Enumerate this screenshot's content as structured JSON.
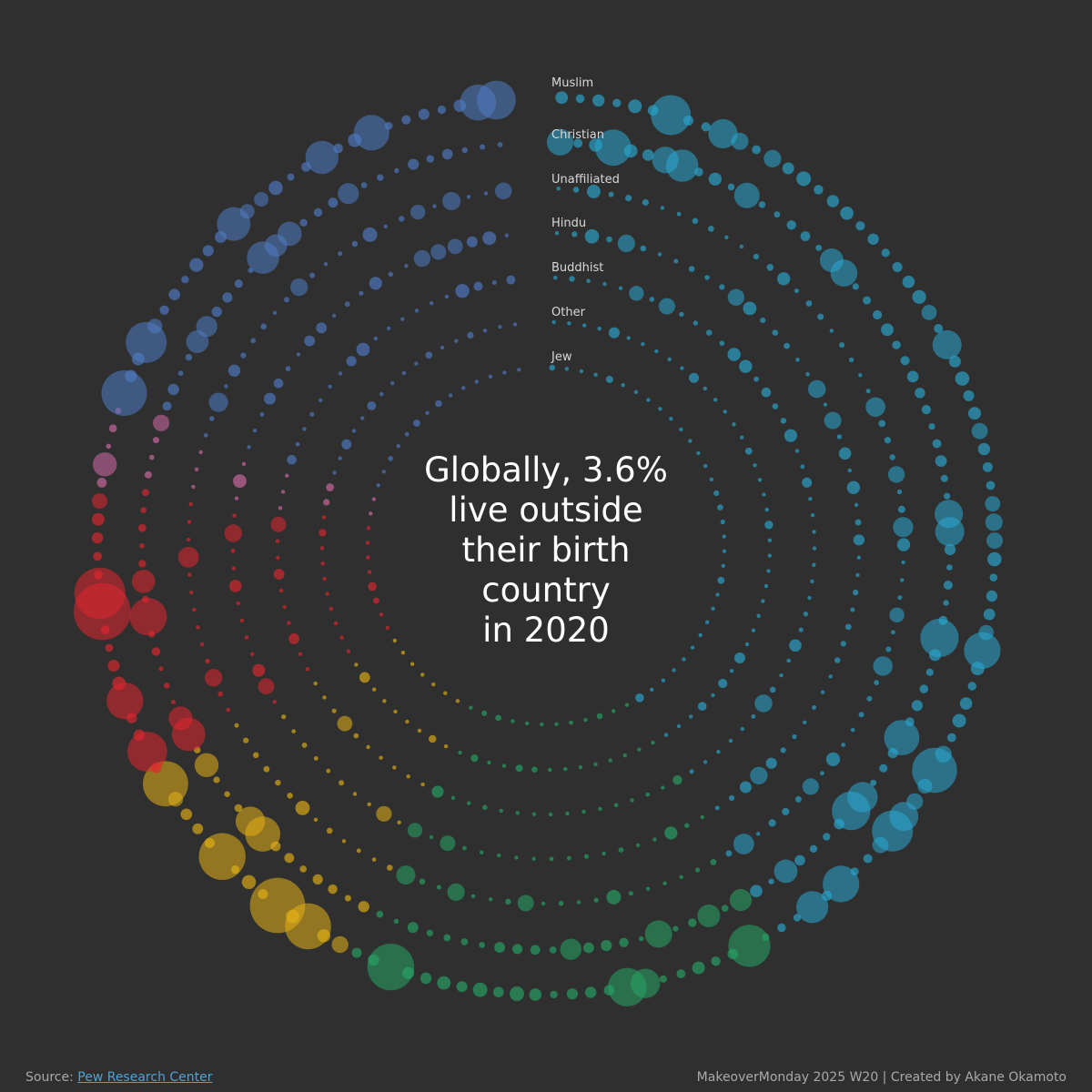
{
  "headline": {
    "line1": "Globally, 3.6%",
    "line2": "live outside",
    "line3": "their birth",
    "line4": "country",
    "line5": "in 2020"
  },
  "footer": {
    "source_label": "Source:",
    "source_link": "Pew Research Center",
    "credit": "MakeoverMonday 2025 W20 | Created by Akane Okamoto"
  },
  "chart_data": {
    "type": "radial bubble chart",
    "headline_value_percent": 3.6,
    "year": 2020,
    "rings": [
      {
        "label": "Muslim"
      },
      {
        "label": "Christian"
      },
      {
        "label": "Unaffiliated"
      },
      {
        "label": "Hindu"
      },
      {
        "label": "Buddhist"
      },
      {
        "label": "Other"
      },
      {
        "label": "Jew"
      }
    ],
    "region_colors": {
      "blue": "#4f7bc4",
      "cyan": "#2aa7d1",
      "green": "#27a565",
      "yellow": "#e3b015",
      "red": "#e0262d",
      "pink": "#d46aa8"
    },
    "background": "#2f2f2f"
  }
}
